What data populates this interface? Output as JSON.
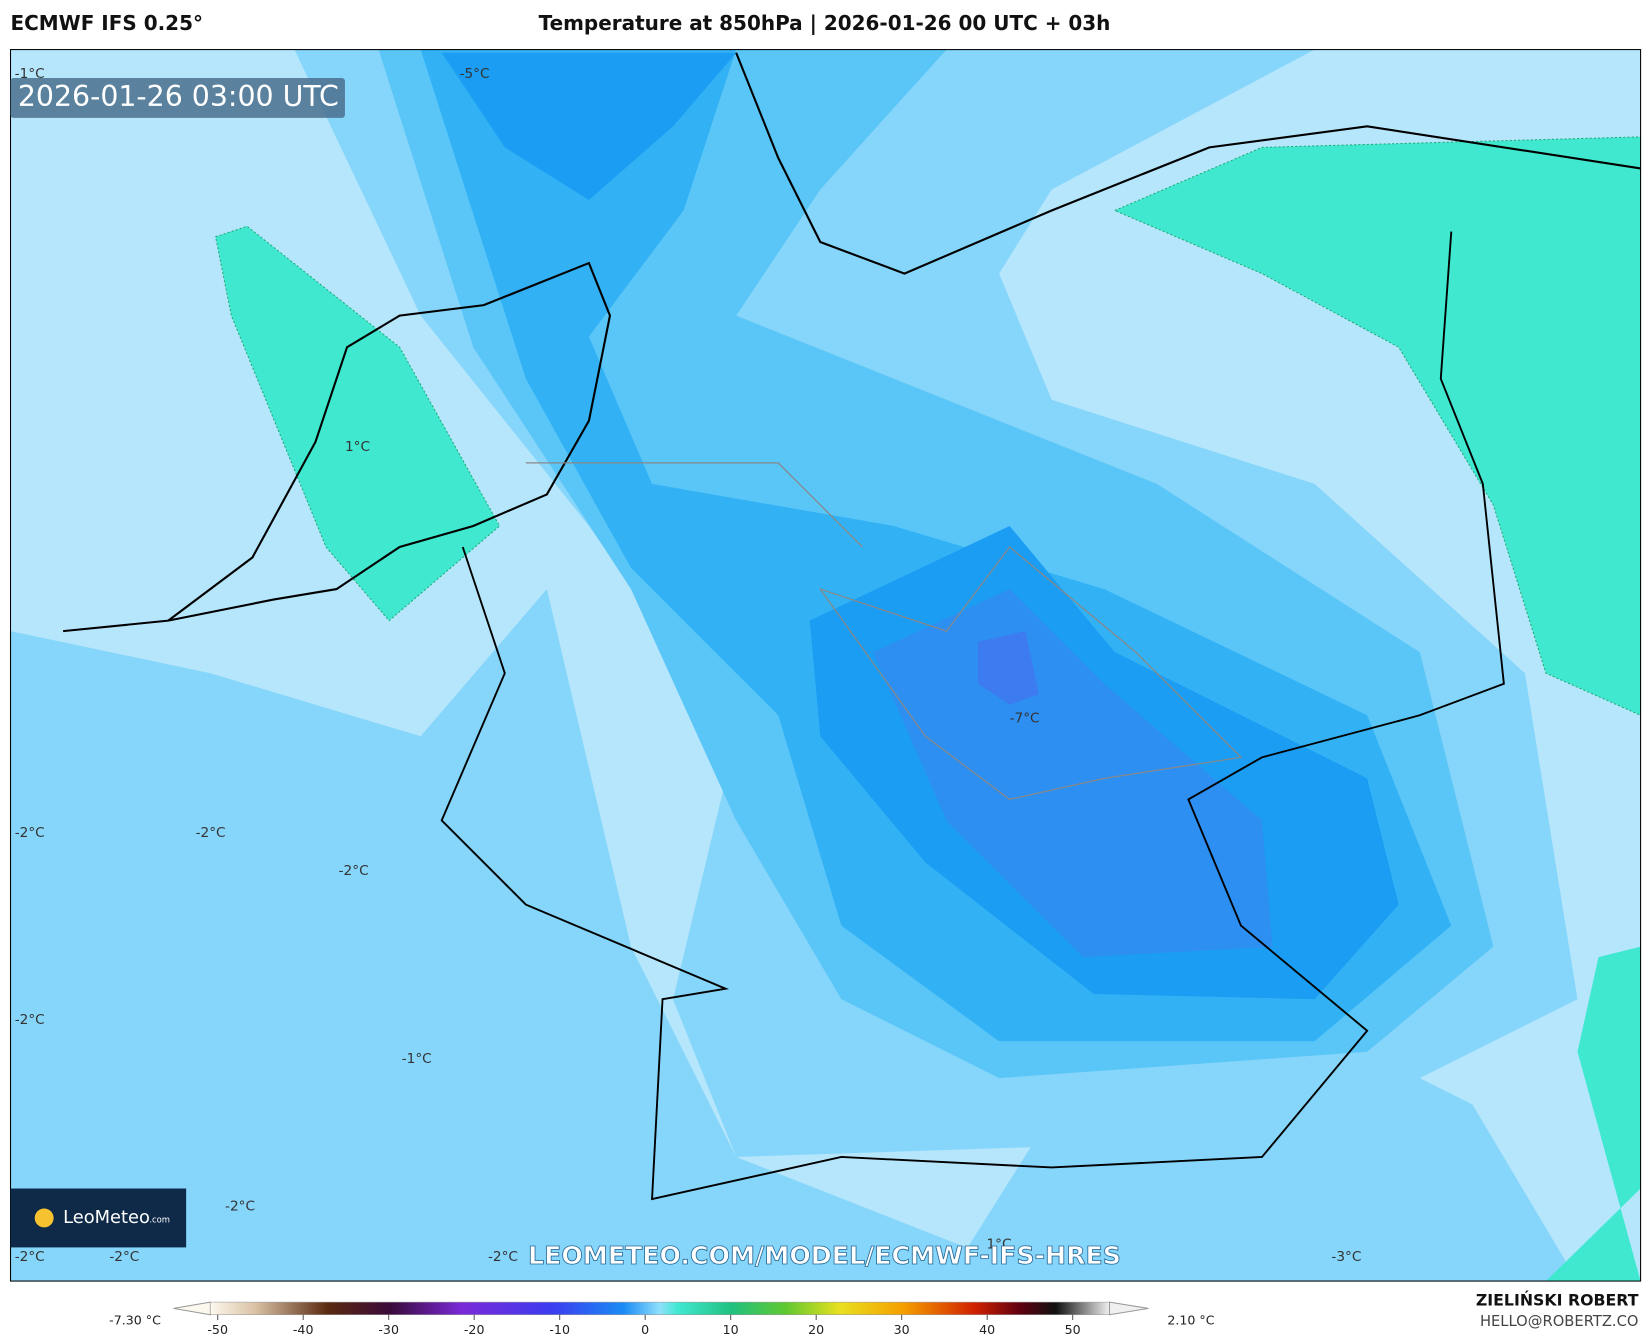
{
  "header": {
    "model": "ECMWF IFS 0.25°",
    "title": "Temperature at 850hPa | 2026-01-26 00 UTC + 03h"
  },
  "map": {
    "timestamp": "2026-01-26 03:00 UTC",
    "labels": [
      "-1°C",
      "-5°C",
      "1°C",
      "-7°C",
      "-2°C",
      "-2°C",
      "-2°C",
      "-2°C",
      "-1°C",
      "-2°C",
      "-2°C",
      "-2°C",
      "-2°C",
      "1°C",
      "-3°C"
    ],
    "watermark": "LEOMETEO.COM/MODEL/ECMWF-IFS-HRES",
    "logo": "LeoMeteo",
    "logo_suffix": ".com"
  },
  "colorbar": {
    "min_label": "-7.30 °C",
    "max_label": "2.10 °C",
    "ticks": [
      -50,
      -40,
      -30,
      -20,
      -10,
      0,
      10,
      20,
      30,
      40,
      50
    ]
  },
  "footer": {
    "author": "ZIELIŃSKI ROBERT",
    "email": "HELLO@ROBERTZ.CO"
  }
}
